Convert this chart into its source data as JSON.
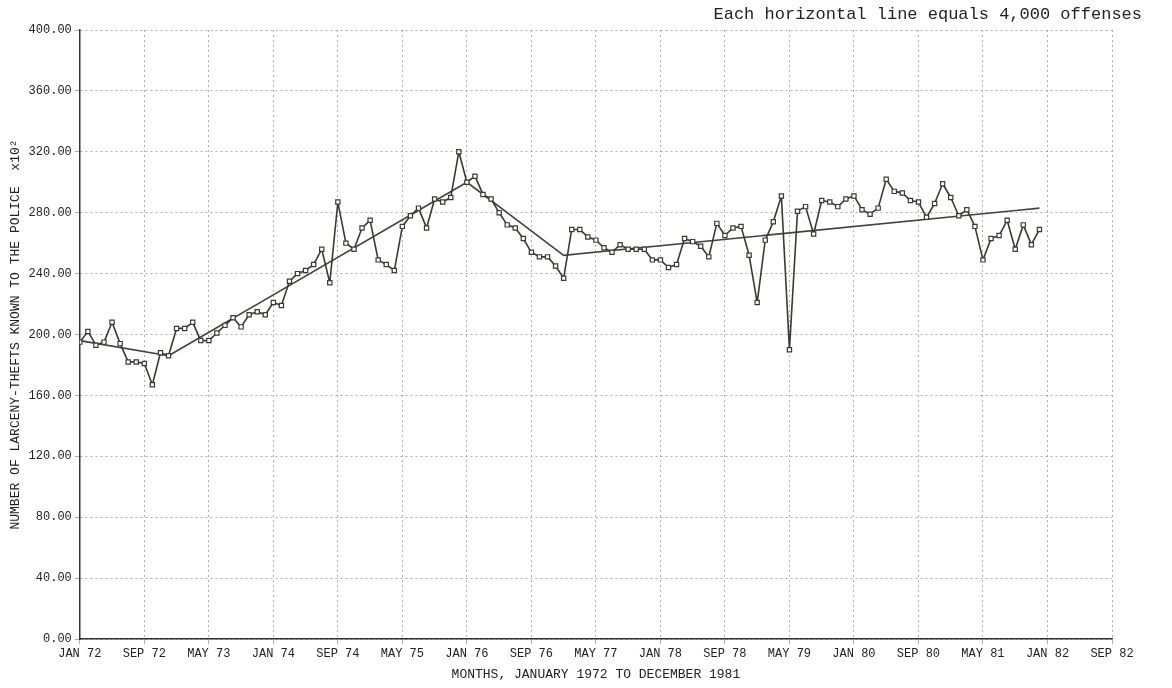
{
  "chart_data": {
    "type": "line",
    "xlabel": "MONTHS, JANUARY 1972 TO DECEMBER 1981",
    "ylabel": "NUMBER OF LARCENY-THEFTS KNOWN TO THE POLICE  x10²",
    "annotations": [
      "Each horizontal line equals 4,000 offenses"
    ],
    "x": [
      "1972-01",
      "1972-02",
      "1972-03",
      "1972-04",
      "1972-05",
      "1972-06",
      "1972-07",
      "1972-08",
      "1972-09",
      "1972-10",
      "1972-11",
      "1972-12",
      "1973-01",
      "1973-02",
      "1973-03",
      "1973-04",
      "1973-05",
      "1973-06",
      "1973-07",
      "1973-08",
      "1973-09",
      "1973-10",
      "1973-11",
      "1973-12",
      "1974-01",
      "1974-02",
      "1974-03",
      "1974-04",
      "1974-05",
      "1974-06",
      "1974-07",
      "1974-08",
      "1974-09",
      "1974-10",
      "1974-11",
      "1974-12",
      "1975-01",
      "1975-02",
      "1975-03",
      "1975-04",
      "1975-05",
      "1975-06",
      "1975-07",
      "1975-08",
      "1975-09",
      "1975-10",
      "1975-11",
      "1975-12",
      "1976-01",
      "1976-02",
      "1976-03",
      "1976-04",
      "1976-05",
      "1976-06",
      "1976-07",
      "1976-08",
      "1976-09",
      "1976-10",
      "1976-11",
      "1976-12",
      "1977-01",
      "1977-02",
      "1977-03",
      "1977-04",
      "1977-05",
      "1977-06",
      "1977-07",
      "1977-08",
      "1977-09",
      "1977-10",
      "1977-11",
      "1977-12",
      "1978-01",
      "1978-02",
      "1978-03",
      "1978-04",
      "1978-05",
      "1978-06",
      "1978-07",
      "1978-08",
      "1978-09",
      "1978-10",
      "1978-11",
      "1978-12",
      "1979-01",
      "1979-02",
      "1979-03",
      "1979-04",
      "1979-05",
      "1979-06",
      "1979-07",
      "1979-08",
      "1979-09",
      "1979-10",
      "1979-11",
      "1979-12",
      "1980-01",
      "1980-02",
      "1980-03",
      "1980-04",
      "1980-05",
      "1980-06",
      "1980-07",
      "1980-08",
      "1980-09",
      "1980-10",
      "1980-11",
      "1980-12",
      "1981-01",
      "1981-02",
      "1981-03",
      "1981-04",
      "1981-05",
      "1981-06",
      "1981-07",
      "1981-08",
      "1981-09",
      "1981-10",
      "1981-11",
      "1981-12"
    ],
    "series": [
      {
        "color": "#3a3a34",
        "marker": "square",
        "line_style": "solid",
        "values": [
          195,
          202,
          193,
          195,
          208,
          194,
          182,
          182,
          181,
          167,
          188,
          186,
          204,
          204,
          208,
          196,
          196,
          201,
          206,
          211,
          205,
          213,
          215,
          213,
          221,
          219,
          235,
          240,
          242,
          246,
          256,
          234,
          287,
          260,
          256,
          270,
          275,
          249,
          246,
          242,
          271,
          278,
          283,
          270,
          289,
          287,
          290,
          320,
          300,
          304,
          292,
          289,
          280,
          272,
          270,
          263,
          254,
          251,
          251,
          245,
          237,
          269,
          269,
          264,
          262,
          257,
          254,
          259,
          256,
          256,
          256,
          249,
          249,
          244,
          246,
          263,
          261,
          258,
          251,
          273,
          265,
          270,
          271,
          252,
          221,
          262,
          274,
          291,
          190,
          281,
          284,
          266,
          288,
          287,
          284,
          289,
          291,
          282,
          279,
          283,
          302,
          294,
          293,
          288,
          287,
          277,
          286,
          299,
          290,
          278,
          282,
          271,
          249,
          263,
          265,
          275,
          256,
          272,
          259,
          269
        ]
      },
      {
        "type": "line",
        "color": "#4a3f35",
        "marker": "none",
        "line_style": "solid",
        "x": [
          "1972-01",
          "1972-12",
          "1976-01",
          "1977-01",
          "1981-12"
        ],
        "values": [
          196,
          186,
          300,
          252,
          283
        ]
      }
    ],
    "xlim": [
      "1972-01",
      "1982-09"
    ],
    "xticks": [
      {
        "value": "1972-01",
        "label": "JAN 72"
      },
      {
        "value": "1972-09",
        "label": "SEP 72"
      },
      {
        "value": "1973-05",
        "label": "MAY 73"
      },
      {
        "value": "1974-01",
        "label": "JAN 74"
      },
      {
        "value": "1974-09",
        "label": "SEP 74"
      },
      {
        "value": "1975-05",
        "label": "MAY 75"
      },
      {
        "value": "1976-01",
        "label": "JAN 76"
      },
      {
        "value": "1976-09",
        "label": "SEP 76"
      },
      {
        "value": "1977-05",
        "label": "MAY 77"
      },
      {
        "value": "1978-01",
        "label": "JAN 78"
      },
      {
        "value": "1978-09",
        "label": "SEP 78"
      },
      {
        "value": "1979-05",
        "label": "MAY 79"
      },
      {
        "value": "1980-01",
        "label": "JAN 80"
      },
      {
        "value": "1980-09",
        "label": "SEP 80"
      },
      {
        "value": "1981-05",
        "label": "MAY 81"
      },
      {
        "value": "1982-01",
        "label": "JAN 82"
      },
      {
        "value": "1982-09",
        "label": "SEP 82"
      }
    ],
    "ylim": [
      0,
      400
    ],
    "yticks": [
      {
        "value": 0,
        "label": "0.00"
      },
      {
        "value": 40,
        "label": "40.00"
      },
      {
        "value": 80,
        "label": "80.00"
      },
      {
        "value": 120,
        "label": "120.00"
      },
      {
        "value": 160,
        "label": "160.00"
      },
      {
        "value": 200,
        "label": "200.00"
      },
      {
        "value": 240,
        "label": "240.00"
      },
      {
        "value": 280,
        "label": "280.00"
      },
      {
        "value": 320,
        "label": "320.00"
      },
      {
        "value": 360,
        "label": "360.00"
      },
      {
        "value": 400,
        "label": "400.00"
      }
    ],
    "grid": true,
    "legend": false
  }
}
